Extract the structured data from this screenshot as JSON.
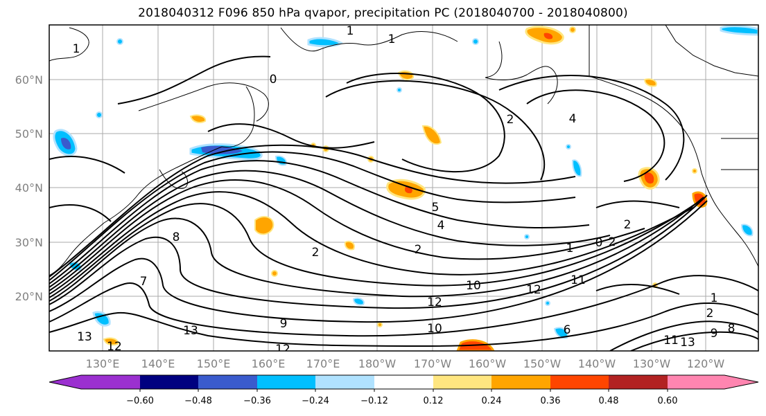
{
  "title": "2018040312 F096 850 hPa qvapor, precipitation PC (2018040700 - 2018040800)",
  "map": {
    "lat_labels": [
      "60°N",
      "50°N",
      "40°N",
      "30°N",
      "20°N"
    ],
    "lon_labels": [
      "130°E",
      "140°E",
      "150°E",
      "160°E",
      "170°E",
      "180°W",
      "170°W",
      "160°W",
      "150°W",
      "140°W",
      "130°W",
      "120°W"
    ],
    "contour_labels": [
      "1",
      "1",
      "0",
      "1",
      "2",
      "4",
      "5",
      "4",
      "2",
      "2",
      "8",
      "7",
      "2",
      "0",
      "1",
      "2",
      "10",
      "12",
      "12",
      "11",
      "12",
      "13",
      "9",
      "10",
      "12",
      "13",
      "6",
      "1",
      "2",
      "9",
      "8",
      "11",
      "13"
    ],
    "coastline_color": "#000000",
    "grid_color": "#aaaaaa"
  },
  "colorbar": {
    "ticks": [
      "−0.60",
      "−0.48",
      "−0.36",
      "−0.24",
      "−0.12",
      "0.12",
      "0.24",
      "0.36",
      "0.48",
      "0.60"
    ],
    "colors": [
      "#9b30d0",
      "#000080",
      "#3a5bcd",
      "#00bfff",
      "#b0e2ff",
      "#ffffff",
      "#ffe680",
      "#ffa500",
      "#ff4500",
      "#b22222",
      "#ff85b0"
    ]
  }
}
